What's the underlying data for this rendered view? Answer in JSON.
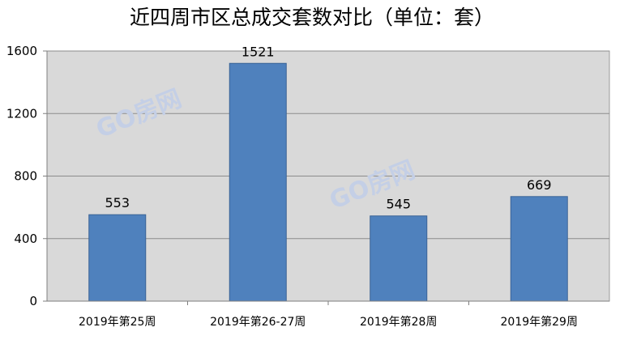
{
  "chart_data": {
    "type": "bar",
    "title": "近四周市区总成交套数对比（单位：套）",
    "xlabel": "",
    "ylabel": "",
    "categories": [
      "2019年第25周",
      "2019年第26-27周",
      "2019年第28周",
      "2019年第29周"
    ],
    "values": [
      553,
      1521,
      545,
      669
    ],
    "ylim": [
      0,
      1600
    ],
    "yticks": [
      0,
      400,
      800,
      1200,
      1600
    ],
    "grid": true,
    "legend": "none",
    "data_labels": true
  },
  "watermarks": [
    "GO房网",
    "GO房网"
  ],
  "colors": {
    "bar_fill": "#4f81bd",
    "bar_stroke": "#3a6396",
    "plot_background": "#d9d9d9",
    "gridline": "#8c8c8c",
    "watermark": "#c4cfe6"
  }
}
